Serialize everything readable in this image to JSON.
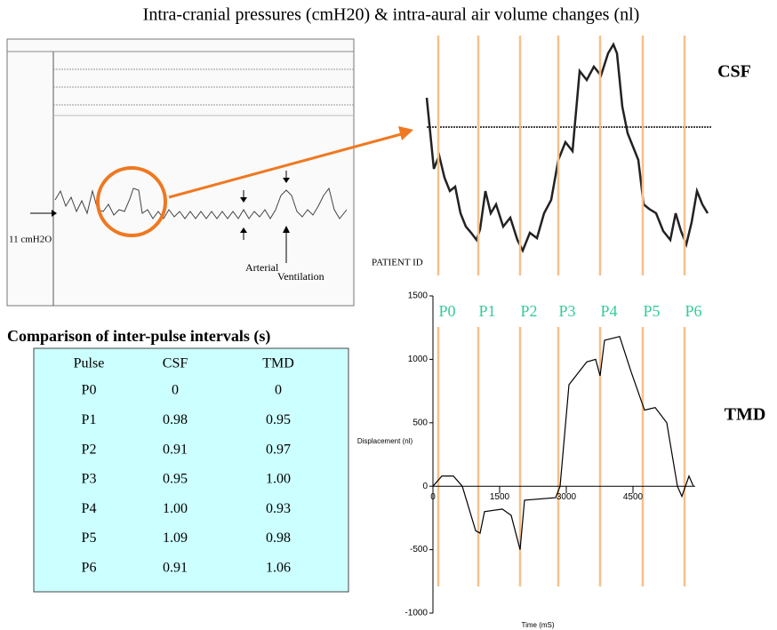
{
  "header": {
    "title": "Intra-cranial pressures (cmH20) & intra-aural air volume changes (nl)"
  },
  "scan": {
    "baseline_label": "11 cmH2O",
    "arterial_label": "Arterial",
    "ventilation_label": "Ventilation"
  },
  "csf": {
    "label": "CSF",
    "patient_label": "PATIENT ID"
  },
  "pulses": [
    "P0",
    "P1",
    "P2",
    "P3",
    "P4",
    "P5",
    "P6"
  ],
  "table": {
    "title": "Comparison of inter-pulse intervals (s)",
    "header": [
      "Pulse",
      "CSF",
      "TMD"
    ],
    "rows": [
      [
        "P0",
        "0",
        "0"
      ],
      [
        "P1",
        "0.98",
        "0.95"
      ],
      [
        "P2",
        "0.91",
        "0.97"
      ],
      [
        "P3",
        "0.95",
        "1.00"
      ],
      [
        "P4",
        "1.00",
        "0.93"
      ],
      [
        "P5",
        "1.09",
        "0.98"
      ],
      [
        "P6",
        "0.91",
        "1.06"
      ]
    ]
  },
  "tmd": {
    "label": "TMD",
    "chart_data": {
      "type": "line",
      "y_label": "Displacement (nl)",
      "x_label": "Time (mS)",
      "xlim": [
        0,
        5900
      ],
      "ylim": [
        -1000,
        1500
      ],
      "xticks": [
        0,
        1500,
        3000,
        4500
      ],
      "yticks": [
        -1000,
        -500,
        0,
        500,
        1000,
        1500
      ],
      "color": "#000000",
      "x": [
        0,
        200,
        460,
        660,
        960,
        1060,
        1160,
        1560,
        1760,
        1960,
        2060,
        2760,
        2860,
        3060,
        3460,
        3660,
        3760,
        3860,
        4200,
        4460,
        4760,
        5000,
        5260,
        5500,
        5600,
        5760,
        5860
      ],
      "values": [
        0,
        80,
        80,
        0,
        -350,
        -370,
        -200,
        -180,
        -230,
        -500,
        -110,
        -90,
        0,
        800,
        980,
        1000,
        870,
        1150,
        1180,
        900,
        600,
        620,
        500,
        0,
        -80,
        80,
        0
      ]
    }
  }
}
